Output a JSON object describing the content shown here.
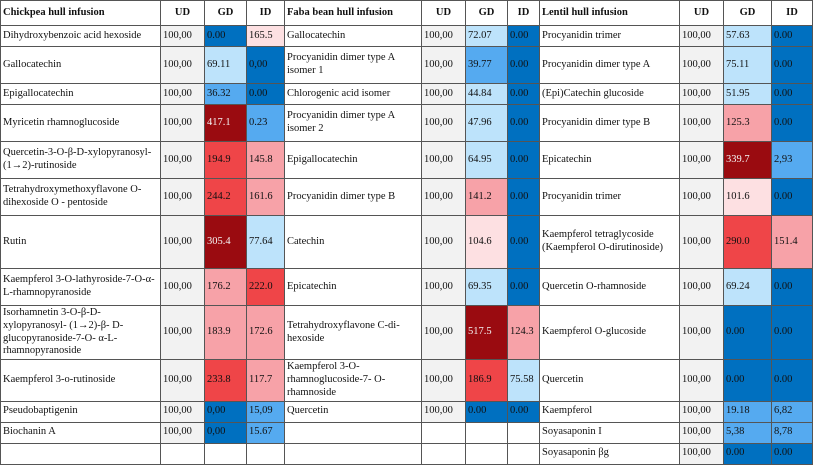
{
  "table": {
    "headers": [
      "Chickpea hull infusion",
      "UD",
      "GD",
      "ID",
      "Faba bean hull infusion",
      "UD",
      "GD",
      "ID",
      "Lentil hull infusion",
      "UD",
      "GD",
      "ID"
    ],
    "rows": [
      [
        {
          "t": "Dihydroxybenzoic acid hexoside"
        },
        {
          "t": "100,00",
          "k": "ud"
        },
        {
          "t": "0.00",
          "k": "low"
        },
        {
          "t": "165.5",
          "k": "pale"
        },
        {
          "t": "Gallocatechin"
        },
        {
          "t": "100,00",
          "k": "ud"
        },
        {
          "t": "72.07",
          "k": "bluepale"
        },
        {
          "t": "0.00",
          "k": "low"
        },
        {
          "t": "Procyanidin trimer"
        },
        {
          "t": "100,00",
          "k": "ud"
        },
        {
          "t": "57.63",
          "k": "bluepale"
        },
        {
          "t": "0.00",
          "k": "low"
        }
      ],
      [
        {
          "t": "Gallocatechin"
        },
        {
          "t": "100,00",
          "k": "ud"
        },
        {
          "t": "69.11",
          "k": "bluepale"
        },
        {
          "t": "0,00",
          "k": "low"
        },
        {
          "t": "Procyanidin dimer type A isomer 1"
        },
        {
          "t": "100,00",
          "k": "ud"
        },
        {
          "t": "39.77",
          "k": "bluemid"
        },
        {
          "t": "0.00",
          "k": "low"
        },
        {
          "t": "Procyanidin dimer type A"
        },
        {
          "t": "100,00",
          "k": "ud"
        },
        {
          "t": "75.11",
          "k": "bluepale"
        },
        {
          "t": "0.00",
          "k": "low"
        }
      ],
      [
        {
          "t": "Epigallocatechin"
        },
        {
          "t": "100,00",
          "k": "ud"
        },
        {
          "t": "36.32",
          "k": "bluemid"
        },
        {
          "t": "0.00",
          "k": "low"
        },
        {
          "t": "Chlorogenic acid isomer"
        },
        {
          "t": "100,00",
          "k": "ud"
        },
        {
          "t": "44.84",
          "k": "bluepale"
        },
        {
          "t": "0.00",
          "k": "low"
        },
        {
          "t": "(Epi)Catechin glucoside"
        },
        {
          "t": "100,00",
          "k": "ud"
        },
        {
          "t": "51.95",
          "k": "bluepale"
        },
        {
          "t": "0.00",
          "k": "low"
        }
      ],
      [
        {
          "t": "Myricetin rhamnoglucoside"
        },
        {
          "t": "100,00",
          "k": "ud"
        },
        {
          "t": "417.1",
          "k": "darkred"
        },
        {
          "t": "0.23",
          "k": "bluemid"
        },
        {
          "t": "Procyanidin dimer type A isomer 2"
        },
        {
          "t": "100,00",
          "k": "ud"
        },
        {
          "t": "47.96",
          "k": "bluepale"
        },
        {
          "t": "0.00",
          "k": "low"
        },
        {
          "t": "Procyanidin dimer type B"
        },
        {
          "t": "100,00",
          "k": "ud"
        },
        {
          "t": "125.3",
          "k": "pink"
        },
        {
          "t": "0.00",
          "k": "low"
        }
      ],
      [
        {
          "t": "Quercetin-3-O-β-D-xylopyranosyl-(1→2)-rutinoside"
        },
        {
          "t": "100,00",
          "k": "ud"
        },
        {
          "t": "194.9",
          "k": "red"
        },
        {
          "t": "145.8",
          "k": "pink"
        },
        {
          "t": "Epigallocatechin"
        },
        {
          "t": "100,00",
          "k": "ud"
        },
        {
          "t": "64.95",
          "k": "bluepale"
        },
        {
          "t": "0.00",
          "k": "low"
        },
        {
          "t": "Epicatechin"
        },
        {
          "t": "100,00",
          "k": "ud"
        },
        {
          "t": "339.7",
          "k": "darkred"
        },
        {
          "t": "2,93",
          "k": "bluemid"
        }
      ],
      [
        {
          "t": "Tetrahydroxymethoxyflavone O-dihexoside O - pentoside"
        },
        {
          "t": "100,00",
          "k": "ud"
        },
        {
          "t": "244.2",
          "k": "red"
        },
        {
          "t": "161.6",
          "k": "pink"
        },
        {
          "t": "Procyanidin dimer type B"
        },
        {
          "t": "100,00",
          "k": "ud"
        },
        {
          "t": "141.2",
          "k": "pink"
        },
        {
          "t": "0.00",
          "k": "low"
        },
        {
          "t": "Procyanidin trimer"
        },
        {
          "t": "100,00",
          "k": "ud"
        },
        {
          "t": "101.6",
          "k": "pale"
        },
        {
          "t": "0.00",
          "k": "low"
        }
      ],
      [
        {
          "t": "Rutin"
        },
        {
          "t": "100,00",
          "k": "ud"
        },
        {
          "t": "305.4",
          "k": "darkred"
        },
        {
          "t": "77.64",
          "k": "bluepale"
        },
        {
          "t": "Catechin"
        },
        {
          "t": "100,00",
          "k": "ud"
        },
        {
          "t": "104.6",
          "k": "pale"
        },
        {
          "t": "0.00",
          "k": "low"
        },
        {
          "t": "Kaempferol tetraglycoside (Kaempferol O-dirutinoside)"
        },
        {
          "t": "100,00",
          "k": "ud"
        },
        {
          "t": "290.0",
          "k": "red"
        },
        {
          "t": "151.4",
          "k": "pink"
        }
      ],
      [
        {
          "t": "Kaempferol 3-O-lathyroside-7-O-α-L-rhamnopyranoside"
        },
        {
          "t": "100,00",
          "k": "ud"
        },
        {
          "t": "176.2",
          "k": "pink"
        },
        {
          "t": "222.0",
          "k": "red"
        },
        {
          "t": "Epicatechin"
        },
        {
          "t": "100,00",
          "k": "ud"
        },
        {
          "t": "69.35",
          "k": "bluepale"
        },
        {
          "t": "0.00",
          "k": "low"
        },
        {
          "t": "Quercetin O-rhamnoside"
        },
        {
          "t": "100,00",
          "k": "ud"
        },
        {
          "t": "69.24",
          "k": "bluepale"
        },
        {
          "t": "0.00",
          "k": "low"
        }
      ],
      [
        {
          "t": "Isorhamnetin 3-O-β-D-xylopyranosyl- (1→2)-β- D-glucopyranoside-7-O- α-L-rhamnopyranoside"
        },
        {
          "t": "100,00",
          "k": "ud"
        },
        {
          "t": "183.9",
          "k": "pink"
        },
        {
          "t": "172.6",
          "k": "pink"
        },
        {
          "t": "Tetrahydroxyflavone C-di-hexoside"
        },
        {
          "t": "100,00",
          "k": "ud"
        },
        {
          "t": "517.5",
          "k": "darkred"
        },
        {
          "t": "124.3",
          "k": "pink"
        },
        {
          "t": "Kaempferol O-glucoside"
        },
        {
          "t": "100,00",
          "k": "ud"
        },
        {
          "t": "0.00",
          "k": "low"
        },
        {
          "t": "0.00",
          "k": "low"
        }
      ],
      [
        {
          "t": "Kaempferol 3-o-rutinoside"
        },
        {
          "t": "100,00",
          "k": "ud"
        },
        {
          "t": "233.8",
          "k": "red"
        },
        {
          "t": "117.7",
          "k": "pink"
        },
        {
          "t": "Kaempferol 3-O-rhamnoglucoside-7- O-rhamnoside"
        },
        {
          "t": "100,00",
          "k": "ud"
        },
        {
          "t": "186.9",
          "k": "red"
        },
        {
          "t": "75.58",
          "k": "bluepale"
        },
        {
          "t": "Quercetin"
        },
        {
          "t": "100,00",
          "k": "ud"
        },
        {
          "t": "0.00",
          "k": "low"
        },
        {
          "t": "0.00",
          "k": "low"
        }
      ],
      [
        {
          "t": "Pseudobaptigenin"
        },
        {
          "t": "100,00",
          "k": "ud"
        },
        {
          "t": "0,00",
          "k": "low"
        },
        {
          "t": "15,09",
          "k": "bluemid"
        },
        {
          "t": "Quercetin"
        },
        {
          "t": "100,00",
          "k": "ud"
        },
        {
          "t": "0.00",
          "k": "low"
        },
        {
          "t": "0.00",
          "k": "low"
        },
        {
          "t": "Kaempferol"
        },
        {
          "t": "100,00",
          "k": "ud"
        },
        {
          "t": "19.18",
          "k": "bluemid"
        },
        {
          "t": "6,82",
          "k": "bluemid"
        }
      ],
      [
        {
          "t": "Biochanin A"
        },
        {
          "t": "100,00",
          "k": "ud"
        },
        {
          "t": "0,00",
          "k": "low"
        },
        {
          "t": "15.67",
          "k": "bluemid"
        },
        {
          "t": "",
          "k": "empty"
        },
        {
          "t": "",
          "k": "empty"
        },
        {
          "t": "",
          "k": "empty"
        },
        {
          "t": "",
          "k": "empty"
        },
        {
          "t": "Soyasaponin I"
        },
        {
          "t": "100,00",
          "k": "ud"
        },
        {
          "t": "5,38",
          "k": "bluemid"
        },
        {
          "t": "8,78",
          "k": "bluemid"
        }
      ],
      [
        {
          "t": "",
          "k": "empty"
        },
        {
          "t": "",
          "k": "empty"
        },
        {
          "t": "",
          "k": "empty"
        },
        {
          "t": "",
          "k": "empty"
        },
        {
          "t": "",
          "k": "empty"
        },
        {
          "t": "",
          "k": "empty"
        },
        {
          "t": "",
          "k": "empty"
        },
        {
          "t": "",
          "k": "empty"
        },
        {
          "t": "Soyasaponin βg"
        },
        {
          "t": "100,00",
          "k": "ud"
        },
        {
          "t": "0.00",
          "k": "low"
        },
        {
          "t": "0.00",
          "k": "low"
        }
      ]
    ]
  },
  "colors": {
    "ud": "#f2f2f2",
    "low": "#0070c0",
    "bluemid": "#55aaf0",
    "bluepale": "#bde3fb",
    "pale": "#fde0e2",
    "pink": "#f7a2a8",
    "red": "#ef4548",
    "darkred": "#9a0b10",
    "empty": "#ffffff"
  }
}
